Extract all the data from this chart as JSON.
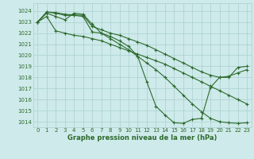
{
  "title": "Graphe pression niveau de la mer (hPa)",
  "bg_color": "#ceeaea",
  "line_color": "#2d6a2d",
  "grid_color": "#aacfcf",
  "ylim": [
    1013.5,
    1024.7
  ],
  "yticks": [
    1014,
    1015,
    1016,
    1017,
    1018,
    1019,
    1020,
    1021,
    1022,
    1023,
    1024
  ],
  "xlim": [
    -0.5,
    23.5
  ],
  "xticks": [
    0,
    1,
    2,
    3,
    4,
    5,
    6,
    7,
    8,
    9,
    10,
    11,
    12,
    13,
    14,
    15,
    16,
    17,
    18,
    19,
    20,
    21,
    22,
    23
  ],
  "series": [
    [
      1023.0,
      1023.8,
      1023.5,
      1023.2,
      1023.8,
      1023.7,
      1022.8,
      1022.0,
      1021.5,
      1021.0,
      1020.5,
      1019.9,
      1019.3,
      1018.7,
      1018.0,
      1017.2,
      1016.4,
      1015.6,
      1014.9,
      1014.3,
      1014.0,
      1013.9,
      1013.85,
      1013.9
    ],
    [
      1023.0,
      1023.9,
      1023.85,
      1023.7,
      1023.65,
      1023.6,
      1022.6,
      1022.3,
      1022.0,
      1021.8,
      1021.5,
      1021.2,
      1020.9,
      1020.5,
      1020.1,
      1019.7,
      1019.3,
      1018.9,
      1018.5,
      1018.2,
      1018.0,
      1018.1,
      1018.4,
      1018.7
    ],
    [
      1023.0,
      1023.9,
      1023.8,
      1023.6,
      1023.6,
      1023.5,
      1022.1,
      1022.0,
      1021.7,
      1021.3,
      1020.8,
      1019.9,
      1017.6,
      1015.4,
      1014.6,
      1013.9,
      1013.85,
      1014.2,
      1014.3,
      1017.1,
      1018.0,
      1018.0,
      1018.9,
      1019.0
    ],
    [
      1023.0,
      1023.5,
      1022.2,
      1022.0,
      1021.8,
      1021.7,
      1021.5,
      1021.3,
      1021.0,
      1020.7,
      1020.4,
      1020.1,
      1019.8,
      1019.5,
      1019.2,
      1018.8,
      1018.4,
      1018.0,
      1017.6,
      1017.2,
      1016.8,
      1016.4,
      1016.0,
      1015.6
    ]
  ],
  "title_fontsize": 6.0,
  "tick_fontsize": 5.0,
  "linewidth": 0.8,
  "markersize": 2.5
}
